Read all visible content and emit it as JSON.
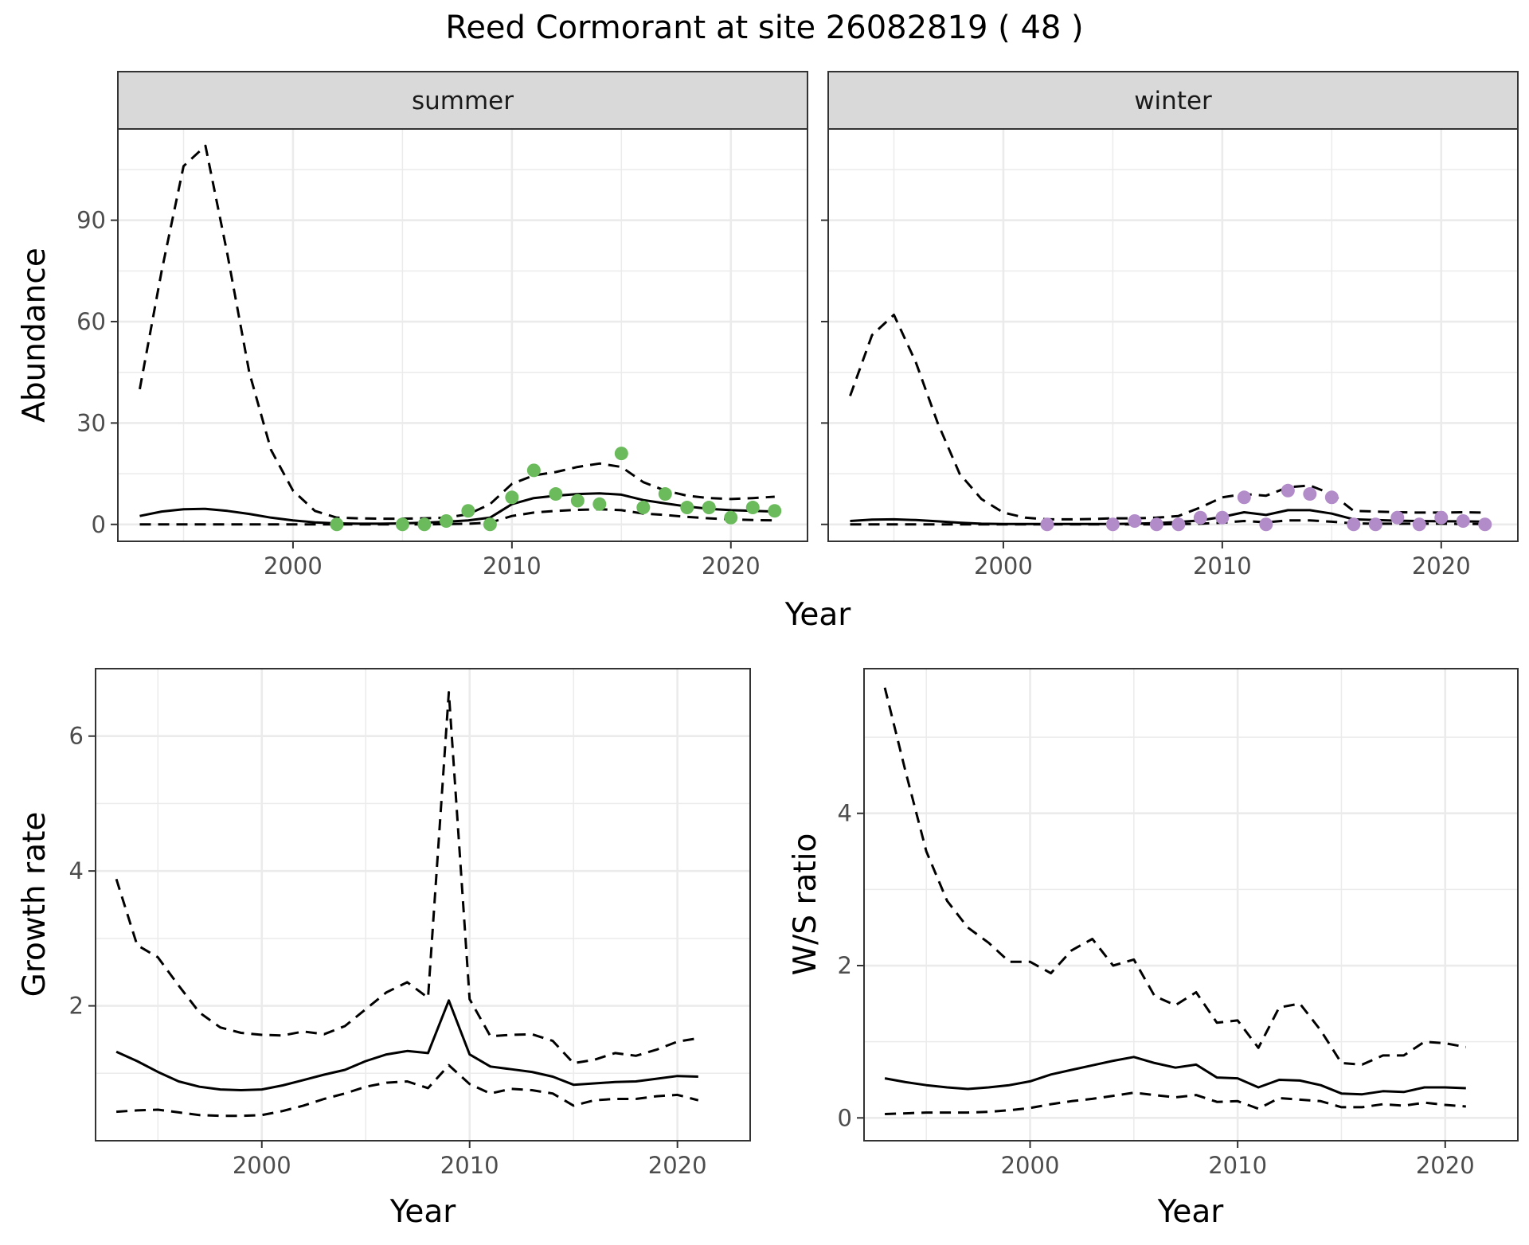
{
  "title": "Reed Cormorant at site 26082819 ( 48 )",
  "colors": {
    "summer": "#6BBB5C",
    "winter": "#B28BC9",
    "line": "#000000",
    "strip": "#D9D9D9",
    "grid": "#EBEBEB"
  },
  "chart_data": [
    {
      "type": "line",
      "facet": "summer",
      "xlabel": "Year",
      "ylabel": "Abundance",
      "xlim": [
        1992,
        2023.5
      ],
      "ylim": [
        -5,
        117
      ],
      "xticks": [
        2000,
        2010,
        2020
      ],
      "yticks": [
        0,
        30,
        60,
        90
      ],
      "x": [
        1993,
        1994,
        1995,
        1996,
        1997,
        1998,
        1999,
        2000,
        2001,
        2002,
        2003,
        2004,
        2005,
        2006,
        2007,
        2008,
        2009,
        2010,
        2011,
        2012,
        2013,
        2014,
        2015,
        2016,
        2017,
        2018,
        2019,
        2020,
        2021,
        2022
      ],
      "series": [
        {
          "role": "estimate",
          "values": [
            2.5,
            3.8,
            4.5,
            4.6,
            4,
            3.1,
            2,
            1.2,
            0.6,
            0.3,
            0.2,
            0.2,
            0.3,
            0.5,
            0.8,
            1.2,
            2,
            6,
            7.8,
            8.5,
            9,
            9.2,
            8.8,
            7.2,
            6.2,
            5.3,
            4.6,
            4.2,
            4,
            3.8
          ]
        },
        {
          "role": "upper",
          "values": [
            40,
            75,
            106,
            112,
            80,
            45,
            22,
            10,
            4,
            2,
            1.8,
            1.7,
            1.7,
            1.8,
            2,
            3,
            6,
            12,
            14.5,
            15.5,
            17,
            18,
            17,
            12.5,
            10,
            8.5,
            7.8,
            7.5,
            7.8,
            8.2
          ]
        },
        {
          "role": "lower",
          "values": [
            0,
            0,
            0,
            0,
            0,
            0,
            0,
            0,
            0,
            0,
            0,
            0,
            0,
            0,
            0.1,
            0.2,
            0.5,
            2.5,
            3.5,
            4,
            4.3,
            4.5,
            4.2,
            3.2,
            2.8,
            2.2,
            1.8,
            1.5,
            1.3,
            1.2
          ]
        }
      ],
      "points": {
        "x": [
          2002,
          2005,
          2006,
          2007,
          2008,
          2009,
          2010,
          2011,
          2012,
          2013,
          2014,
          2015,
          2016,
          2017,
          2018,
          2019,
          2020,
          2021,
          2022
        ],
        "y": [
          0,
          0,
          0,
          1,
          4,
          0,
          8,
          16,
          9,
          7,
          6,
          21,
          5,
          9,
          5,
          5,
          2,
          5,
          4
        ]
      }
    },
    {
      "type": "line",
      "facet": "winter",
      "xlabel": "Year",
      "ylabel": "Abundance",
      "xlim": [
        1992,
        2023.5
      ],
      "ylim": [
        -5,
        117
      ],
      "xticks": [
        2000,
        2010,
        2020
      ],
      "yticks": [
        0,
        30,
        60,
        90
      ],
      "x": [
        1993,
        1994,
        1995,
        1996,
        1997,
        1998,
        1999,
        2000,
        2001,
        2002,
        2003,
        2004,
        2005,
        2006,
        2007,
        2008,
        2009,
        2010,
        2011,
        2012,
        2013,
        2014,
        2015,
        2016,
        2017,
        2018,
        2019,
        2020,
        2021,
        2022
      ],
      "series": [
        {
          "role": "estimate",
          "values": [
            1,
            1.4,
            1.5,
            1.3,
            0.9,
            0.5,
            0.2,
            0.1,
            0.1,
            0.1,
            0.1,
            0.1,
            0.1,
            0.2,
            0.4,
            0.7,
            1.2,
            2.2,
            3.6,
            2.8,
            4.2,
            4.2,
            3.2,
            1.5,
            1.3,
            1.1,
            1,
            0.9,
            0.9,
            0.8
          ]
        },
        {
          "role": "upper",
          "values": [
            38,
            56,
            62,
            48,
            30,
            15,
            7.5,
            3.5,
            2,
            1.5,
            1.5,
            1.6,
            1.8,
            1.8,
            2,
            2.5,
            5,
            8,
            9,
            8.5,
            11,
            11.5,
            9,
            4,
            3.8,
            3.6,
            3.5,
            3.5,
            3.6,
            3.5
          ]
        },
        {
          "role": "lower",
          "values": [
            0,
            0,
            0,
            0,
            0,
            0,
            0,
            0,
            0,
            0,
            0,
            0,
            0,
            0,
            0,
            0.1,
            0.2,
            0.5,
            1,
            0.6,
            1.2,
            1.2,
            0.8,
            0.3,
            0.2,
            0.2,
            0.2,
            0.2,
            0.1,
            0.1
          ]
        }
      ],
      "points": {
        "x": [
          2002,
          2005,
          2006,
          2007,
          2008,
          2009,
          2010,
          2011,
          2012,
          2013,
          2014,
          2015,
          2016,
          2017,
          2018,
          2019,
          2020,
          2021,
          2022
        ],
        "y": [
          0,
          0,
          1,
          0,
          0,
          2,
          2,
          8,
          0,
          10,
          9,
          8,
          0,
          0,
          2,
          0,
          2,
          1,
          0
        ]
      }
    },
    {
      "type": "line",
      "facet": "",
      "xlabel": "Year",
      "ylabel": "Growth rate",
      "xlim": [
        1992,
        2023.5
      ],
      "ylim": [
        0,
        7
      ],
      "xticks": [
        2000,
        2010,
        2020
      ],
      "yticks": [
        2,
        4,
        6
      ],
      "x": [
        1993,
        1994,
        1995,
        1996,
        1997,
        1998,
        1999,
        2000,
        2001,
        2002,
        2003,
        2004,
        2005,
        2006,
        2007,
        2008,
        2009,
        2010,
        2011,
        2012,
        2013,
        2014,
        2015,
        2016,
        2017,
        2018,
        2019,
        2020,
        2021
      ],
      "series": [
        {
          "role": "estimate",
          "values": [
            1.32,
            1.18,
            1.02,
            0.88,
            0.8,
            0.76,
            0.75,
            0.76,
            0.82,
            0.9,
            0.98,
            1.05,
            1.18,
            1.28,
            1.33,
            1.3,
            2.08,
            1.28,
            1.1,
            1.06,
            1.02,
            0.95,
            0.83,
            0.85,
            0.87,
            0.88,
            0.92,
            0.96,
            0.95
          ]
        },
        {
          "role": "upper",
          "values": [
            3.88,
            2.9,
            2.72,
            2.3,
            1.9,
            1.68,
            1.6,
            1.57,
            1.56,
            1.62,
            1.58,
            1.7,
            1.95,
            2.2,
            2.35,
            2.12,
            6.65,
            2.1,
            1.55,
            1.57,
            1.58,
            1.48,
            1.15,
            1.2,
            1.3,
            1.26,
            1.35,
            1.47,
            1.52
          ]
        },
        {
          "role": "lower",
          "values": [
            0.43,
            0.45,
            0.46,
            0.42,
            0.38,
            0.37,
            0.37,
            0.38,
            0.44,
            0.52,
            0.62,
            0.7,
            0.8,
            0.86,
            0.88,
            0.78,
            1.12,
            0.84,
            0.7,
            0.77,
            0.75,
            0.7,
            0.52,
            0.6,
            0.62,
            0.62,
            0.66,
            0.68,
            0.6
          ]
        }
      ]
    },
    {
      "type": "line",
      "facet": "",
      "xlabel": "Year",
      "ylabel": "W/S ratio",
      "xlim": [
        1992,
        2023.5
      ],
      "ylim": [
        -0.3,
        5.9
      ],
      "xticks": [
        2000,
        2010,
        2020
      ],
      "yticks": [
        0,
        2,
        4
      ],
      "x": [
        1993,
        1994,
        1995,
        1996,
        1997,
        1998,
        1999,
        2000,
        2001,
        2002,
        2003,
        2004,
        2005,
        2006,
        2007,
        2008,
        2009,
        2010,
        2011,
        2012,
        2013,
        2014,
        2015,
        2016,
        2017,
        2018,
        2019,
        2020,
        2021
      ],
      "series": [
        {
          "role": "estimate",
          "values": [
            0.52,
            0.47,
            0.43,
            0.4,
            0.38,
            0.4,
            0.43,
            0.48,
            0.57,
            0.63,
            0.69,
            0.75,
            0.8,
            0.72,
            0.66,
            0.7,
            0.53,
            0.52,
            0.4,
            0.5,
            0.49,
            0.43,
            0.32,
            0.31,
            0.35,
            0.34,
            0.4,
            0.4,
            0.39
          ]
        },
        {
          "role": "upper",
          "values": [
            5.65,
            4.55,
            3.5,
            2.85,
            2.5,
            2.3,
            2.05,
            2.05,
            1.9,
            2.2,
            2.35,
            2,
            2.08,
            1.6,
            1.48,
            1.65,
            1.25,
            1.28,
            0.92,
            1.45,
            1.5,
            1.15,
            0.72,
            0.7,
            0.82,
            0.82,
            1,
            0.98,
            0.93
          ]
        },
        {
          "role": "lower",
          "values": [
            0.05,
            0.06,
            0.07,
            0.07,
            0.07,
            0.08,
            0.1,
            0.13,
            0.18,
            0.22,
            0.25,
            0.29,
            0.33,
            0.3,
            0.27,
            0.3,
            0.21,
            0.22,
            0.12,
            0.26,
            0.24,
            0.22,
            0.14,
            0.14,
            0.18,
            0.16,
            0.2,
            0.17,
            0.15
          ]
        }
      ]
    }
  ]
}
